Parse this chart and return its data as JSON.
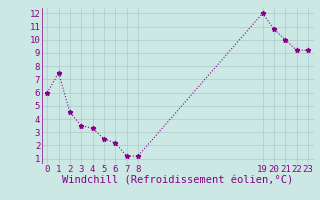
{
  "x": [
    0,
    1,
    2,
    3,
    4,
    5,
    6,
    7,
    8,
    19,
    20,
    21,
    22,
    23
  ],
  "y": [
    6.0,
    7.5,
    4.5,
    3.5,
    3.3,
    2.5,
    2.2,
    1.2,
    1.2,
    12.0,
    10.8,
    10.0,
    9.2,
    9.2
  ],
  "line_color": "#880088",
  "marker": "*",
  "bg_color": "#cce8e4",
  "grid_color": "#aacccc",
  "xlabel": "Windchill (Refroidissement éolien,°C)",
  "xlabel_color": "#880088",
  "tick_color": "#880088",
  "ylim": [
    0.6,
    12.4
  ],
  "xlim": [
    -0.5,
    23.5
  ],
  "yticks": [
    1,
    2,
    3,
    4,
    5,
    6,
    7,
    8,
    9,
    10,
    11,
    12
  ],
  "xticks": [
    0,
    1,
    2,
    3,
    4,
    5,
    6,
    7,
    8,
    19,
    20,
    21,
    22,
    23
  ],
  "font_size": 6.5,
  "label_font_size": 7.5,
  "line_width": 0.8,
  "marker_size": 3.5
}
